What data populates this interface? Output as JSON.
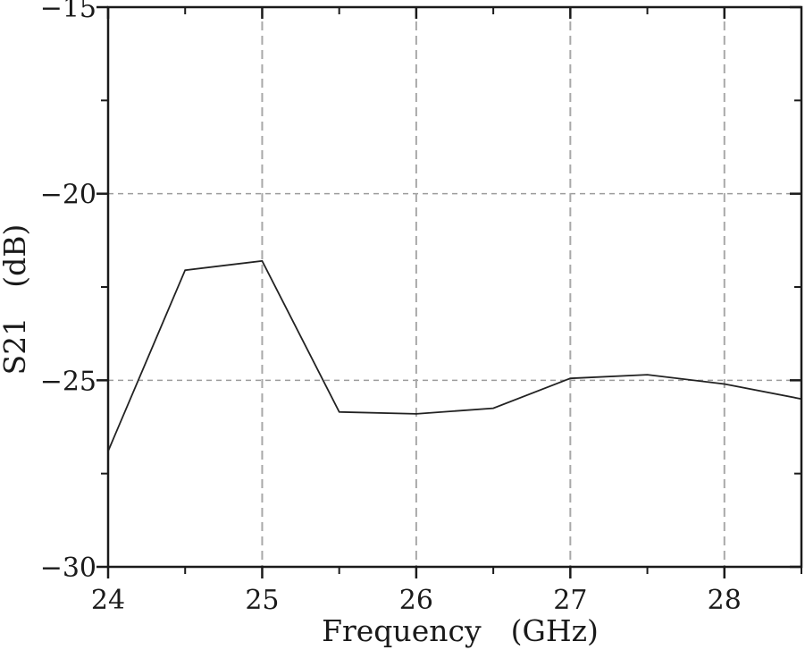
{
  "figure": {
    "background": "#ffffff",
    "axis_color": "#1a1a1a",
    "text_color": "#1a1a1a",
    "series_color": "#222222",
    "grid_color_vertical": "#a8a8a8",
    "grid_color_horizontal": "#9c9c9c"
  },
  "chart_data": {
    "type": "line",
    "title": "",
    "xlabel": "Frequency (GHz)",
    "ylabel": "S21 (dB)",
    "xlim": [
      24,
      28.5
    ],
    "ylim": [
      -30,
      -15
    ],
    "x": [
      24.0,
      24.5,
      25.0,
      25.5,
      26.0,
      26.5,
      27.0,
      27.5,
      28.0,
      28.5
    ],
    "series": [
      {
        "name": "S21",
        "values": [
          -26.9,
          -22.05,
          -21.8,
          -25.85,
          -25.9,
          -25.75,
          -24.95,
          -24.85,
          -25.1,
          -25.5
        ]
      }
    ],
    "xticks": {
      "major": [
        24,
        25,
        26,
        27,
        28
      ],
      "minor": [
        24.5,
        25.5,
        26.5,
        27.5,
        28.5
      ],
      "labels": [
        "24",
        "25",
        "26",
        "27",
        "28"
      ]
    },
    "yticks": {
      "major": [
        -30,
        -25,
        -20,
        -15
      ],
      "minor": [
        -27.5,
        -22.5,
        -17.5
      ],
      "labels": [
        "−30",
        "−25",
        "−20",
        "−15"
      ]
    },
    "grid": {
      "x_major": [
        25,
        26,
        27,
        28
      ],
      "y_major": [
        -25,
        -20
      ],
      "style": "dashed"
    },
    "legend_position": "none"
  }
}
